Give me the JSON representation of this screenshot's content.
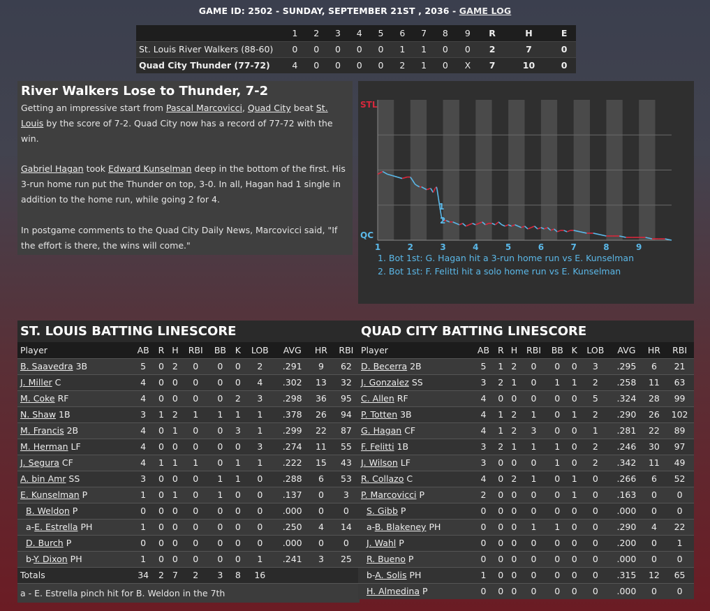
{
  "header": {
    "game_prefix": "GAME ID: 2502 - SUNDAY, SEPTEMBER 21ST , 2036 - ",
    "game_log_link": "GAME LOG"
  },
  "linescore": {
    "columns": [
      "1",
      "2",
      "3",
      "4",
      "5",
      "6",
      "7",
      "8",
      "9",
      "R",
      "H",
      "E"
    ],
    "teams": [
      {
        "name": "St. Louis River Walkers (88-60)",
        "cells": [
          "0",
          "0",
          "0",
          "0",
          "0",
          "1",
          "1",
          "0",
          "0",
          "2",
          "7",
          "0"
        ]
      },
      {
        "name": "Quad City Thunder (77-72)",
        "cells": [
          "4",
          "0",
          "0",
          "0",
          "0",
          "2",
          "1",
          "0",
          "X",
          "7",
          "10",
          "0"
        ]
      }
    ]
  },
  "story": {
    "headline": "River Walkers Lose to Thunder, 7-2",
    "p1_a": "Getting an impressive start from ",
    "p1_link1": "Pascal Marcovicci",
    "p1_b": ", ",
    "p1_link2": "Quad City",
    "p1_c": " beat ",
    "p1_link3": "St. Louis",
    "p1_d": " by the score of 7-2. Quad City now has a record of 77-72 with the win.",
    "p2_link1": "Gabriel Hagan",
    "p2_a": " took ",
    "p2_link2": "Edward Kunselman",
    "p2_b": " deep in the bottom of the first. His 3-run home run put the Thunder on top, 3-0. In all, Hagan had 1 single in addition to the home run, while going 2 for 4.",
    "p3": "In postgame comments to the Quad City Daily News, Marcovicci said, \"If the effort is there, the wins will come.\""
  },
  "chart_data": {
    "type": "line",
    "title": "",
    "y_top_label": "STL",
    "y_bottom_label": "QC",
    "innings": [
      "1",
      "2",
      "3",
      "4",
      "5",
      "6",
      "7",
      "8",
      "9"
    ],
    "ylim": [
      0,
      1
    ],
    "series": [
      {
        "name": "",
        "x": [
          0.0,
          0.15,
          0.3,
          0.45,
          0.6,
          0.75,
          0.9,
          1.0,
          1.06,
          1.14,
          1.2,
          1.28,
          1.34,
          1.42,
          1.5,
          1.62,
          1.7,
          1.76,
          1.8,
          1.82,
          1.86,
          1.9,
          1.95,
          2.0,
          2.1,
          2.2,
          2.3,
          2.4,
          2.5,
          2.6,
          2.7,
          2.8,
          2.9,
          3.0,
          3.1,
          3.2,
          3.3,
          3.4,
          3.5,
          3.6,
          3.7,
          3.8,
          3.9,
          4.0,
          4.1,
          4.2,
          4.3,
          4.4,
          4.5,
          4.6,
          4.7,
          4.8,
          4.9,
          5.0,
          5.1,
          5.2,
          5.3,
          5.4,
          5.5,
          5.6,
          5.7,
          5.8,
          5.9,
          6.0,
          6.2,
          6.4,
          6.6,
          6.8,
          7.0,
          7.2,
          7.4,
          7.6,
          7.8,
          8.0,
          8.2,
          8.4,
          8.6,
          8.8,
          9.0
        ],
        "y": [
          0.47,
          0.49,
          0.47,
          0.46,
          0.45,
          0.44,
          0.45,
          0.45,
          0.43,
          0.4,
          0.39,
          0.38,
          0.38,
          0.37,
          0.36,
          0.37,
          0.34,
          0.37,
          0.38,
          0.36,
          0.3,
          0.24,
          0.17,
          0.14,
          0.14,
          0.13,
          0.13,
          0.12,
          0.11,
          0.12,
          0.1,
          0.11,
          0.12,
          0.11,
          0.12,
          0.13,
          0.11,
          0.12,
          0.12,
          0.11,
          0.13,
          0.11,
          0.1,
          0.11,
          0.1,
          0.11,
          0.1,
          0.09,
          0.1,
          0.08,
          0.09,
          0.1,
          0.08,
          0.09,
          0.08,
          0.09,
          0.07,
          0.08,
          0.06,
          0.07,
          0.07,
          0.06,
          0.07,
          0.07,
          0.06,
          0.05,
          0.05,
          0.04,
          0.03,
          0.03,
          0.03,
          0.02,
          0.02,
          0.02,
          0.02,
          0.01,
          0.01,
          0.01,
          0.0
        ]
      }
    ],
    "markers": [
      {
        "label": "1",
        "x": 1.82,
        "y": 0.24
      },
      {
        "label": "2",
        "x": 1.86,
        "y": 0.14
      }
    ],
    "notes": [
      "1. Bot 1st: G. Hagan hit a 3-run home run vs E. Kunselman",
      "2. Bot 1st: F. Felitti hit a solo home run vs E. Kunselman"
    ]
  },
  "stl_batting": {
    "title": "ST. LOUIS BATTING LINESCORE",
    "columns": [
      "Player",
      "AB",
      "R",
      "H",
      "RBI",
      "BB",
      "K",
      "LOB",
      "AVG",
      "HR",
      "RBI"
    ],
    "rows": [
      {
        "prefix": "",
        "name": "B. Saavedra",
        "pos": " 3B",
        "sub": false,
        "stats": [
          "5",
          "0",
          "2",
          "0",
          "0",
          "0",
          "2",
          ".291",
          "9",
          "62"
        ]
      },
      {
        "prefix": "",
        "name": "J. Miller",
        "pos": " C",
        "sub": false,
        "stats": [
          "4",
          "0",
          "0",
          "0",
          "0",
          "0",
          "4",
          ".302",
          "13",
          "32"
        ]
      },
      {
        "prefix": "",
        "name": "M. Coke",
        "pos": " RF",
        "sub": false,
        "stats": [
          "4",
          "0",
          "0",
          "0",
          "0",
          "2",
          "3",
          ".298",
          "36",
          "95"
        ]
      },
      {
        "prefix": "",
        "name": "N. Shaw",
        "pos": " 1B",
        "sub": false,
        "stats": [
          "3",
          "1",
          "2",
          "1",
          "1",
          "1",
          "1",
          ".378",
          "26",
          "94"
        ]
      },
      {
        "prefix": "",
        "name": "M. Francis",
        "pos": " 2B",
        "sub": false,
        "stats": [
          "4",
          "0",
          "1",
          "0",
          "0",
          "3",
          "1",
          ".299",
          "22",
          "87"
        ]
      },
      {
        "prefix": "",
        "name": "M. Herman",
        "pos": " LF",
        "sub": false,
        "stats": [
          "4",
          "0",
          "0",
          "0",
          "0",
          "0",
          "3",
          ".274",
          "11",
          "55"
        ]
      },
      {
        "prefix": "",
        "name": "J. Segura",
        "pos": " CF",
        "sub": false,
        "stats": [
          "4",
          "1",
          "1",
          "1",
          "0",
          "1",
          "1",
          ".222",
          "15",
          "43"
        ]
      },
      {
        "prefix": "",
        "name": "A. bin Amr",
        "pos": " SS",
        "sub": false,
        "stats": [
          "3",
          "0",
          "0",
          "0",
          "1",
          "1",
          "0",
          ".288",
          "6",
          "53"
        ]
      },
      {
        "prefix": "",
        "name": "E. Kunselman",
        "pos": " P",
        "sub": false,
        "stats": [
          "1",
          "0",
          "1",
          "0",
          "1",
          "0",
          "0",
          ".137",
          "0",
          "3"
        ]
      },
      {
        "prefix": "",
        "name": "B. Weldon",
        "pos": " P",
        "sub": true,
        "stats": [
          "0",
          "0",
          "0",
          "0",
          "0",
          "0",
          "0",
          ".000",
          "0",
          "0"
        ]
      },
      {
        "prefix": "a-",
        "name": "E. Estrella",
        "pos": " PH",
        "sub": true,
        "stats": [
          "1",
          "0",
          "0",
          "0",
          "0",
          "0",
          "0",
          ".250",
          "4",
          "14"
        ]
      },
      {
        "prefix": "",
        "name": "D. Burch",
        "pos": " P",
        "sub": true,
        "stats": [
          "0",
          "0",
          "0",
          "0",
          "0",
          "0",
          "0",
          ".000",
          "0",
          "0"
        ]
      },
      {
        "prefix": "b-",
        "name": "Y. Dixon",
        "pos": " PH",
        "sub": true,
        "stats": [
          "1",
          "0",
          "0",
          "0",
          "0",
          "0",
          "1",
          ".241",
          "3",
          "25"
        ]
      }
    ],
    "totals": {
      "label": "Totals",
      "stats": [
        "34",
        "2",
        "7",
        "2",
        "3",
        "8",
        "16",
        "",
        "",
        ""
      ]
    },
    "footnote": "a - E. Estrella pinch hit for B. Weldon in the 7th"
  },
  "qc_batting": {
    "title": "QUAD CITY BATTING LINESCORE",
    "columns": [
      "Player",
      "AB",
      "R",
      "H",
      "RBI",
      "BB",
      "K",
      "LOB",
      "AVG",
      "HR",
      "RBI"
    ],
    "rows": [
      {
        "prefix": "",
        "name": "D. Becerra",
        "pos": " 2B",
        "sub": false,
        "stats": [
          "5",
          "1",
          "2",
          "0",
          "0",
          "0",
          "3",
          ".295",
          "6",
          "21"
        ]
      },
      {
        "prefix": "",
        "name": "J. Gonzalez",
        "pos": " SS",
        "sub": false,
        "stats": [
          "3",
          "2",
          "1",
          "0",
          "1",
          "1",
          "2",
          ".258",
          "11",
          "63"
        ]
      },
      {
        "prefix": "",
        "name": "C. Allen",
        "pos": " RF",
        "sub": false,
        "stats": [
          "4",
          "0",
          "0",
          "0",
          "0",
          "0",
          "5",
          ".324",
          "28",
          "99"
        ]
      },
      {
        "prefix": "",
        "name": "P. Totten",
        "pos": " 3B",
        "sub": false,
        "stats": [
          "4",
          "1",
          "2",
          "1",
          "0",
          "1",
          "2",
          ".290",
          "26",
          "102"
        ]
      },
      {
        "prefix": "",
        "name": "G. Hagan",
        "pos": " CF",
        "sub": false,
        "stats": [
          "4",
          "1",
          "2",
          "3",
          "0",
          "0",
          "1",
          ".281",
          "22",
          "89"
        ]
      },
      {
        "prefix": "",
        "name": "F. Felitti",
        "pos": " 1B",
        "sub": false,
        "stats": [
          "3",
          "2",
          "1",
          "1",
          "1",
          "0",
          "2",
          ".246",
          "30",
          "97"
        ]
      },
      {
        "prefix": "",
        "name": "J. Wilson",
        "pos": " LF",
        "sub": false,
        "stats": [
          "3",
          "0",
          "0",
          "0",
          "1",
          "0",
          "2",
          ".342",
          "11",
          "49"
        ]
      },
      {
        "prefix": "",
        "name": "R. Collazo",
        "pos": " C",
        "sub": false,
        "stats": [
          "4",
          "0",
          "2",
          "1",
          "0",
          "1",
          "0",
          ".266",
          "6",
          "52"
        ]
      },
      {
        "prefix": "",
        "name": "P. Marcovicci",
        "pos": " P",
        "sub": false,
        "stats": [
          "2",
          "0",
          "0",
          "0",
          "0",
          "1",
          "0",
          ".163",
          "0",
          "0"
        ]
      },
      {
        "prefix": "",
        "name": "S. Gibb",
        "pos": " P",
        "sub": true,
        "stats": [
          "0",
          "0",
          "0",
          "0",
          "0",
          "0",
          "0",
          ".000",
          "0",
          "0"
        ]
      },
      {
        "prefix": "a-",
        "name": "B. Blakeney",
        "pos": " PH",
        "sub": true,
        "stats": [
          "0",
          "0",
          "0",
          "1",
          "1",
          "0",
          "0",
          ".290",
          "4",
          "22"
        ]
      },
      {
        "prefix": "",
        "name": "J. Wahl",
        "pos": " P",
        "sub": true,
        "stats": [
          "0",
          "0",
          "0",
          "0",
          "0",
          "0",
          "0",
          ".200",
          "0",
          "1"
        ]
      },
      {
        "prefix": "",
        "name": "R. Bueno",
        "pos": " P",
        "sub": true,
        "stats": [
          "0",
          "0",
          "0",
          "0",
          "0",
          "0",
          "0",
          ".000",
          "0",
          "0"
        ]
      },
      {
        "prefix": "b-",
        "name": "A. Solis",
        "pos": " PH",
        "sub": true,
        "stats": [
          "1",
          "0",
          "0",
          "0",
          "0",
          "0",
          "0",
          ".315",
          "12",
          "65"
        ]
      },
      {
        "prefix": "",
        "name": "H. Almedina",
        "pos": " P",
        "sub": true,
        "stats": [
          "0",
          "0",
          "0",
          "0",
          "0",
          "0",
          "0",
          ".000",
          "0",
          "0"
        ]
      }
    ]
  },
  "colors": {
    "stl_line": "#d8283c",
    "qc_line": "#5bb8e8",
    "band_light": "#4a4a4a",
    "band_dark": "#2f2f2f"
  }
}
